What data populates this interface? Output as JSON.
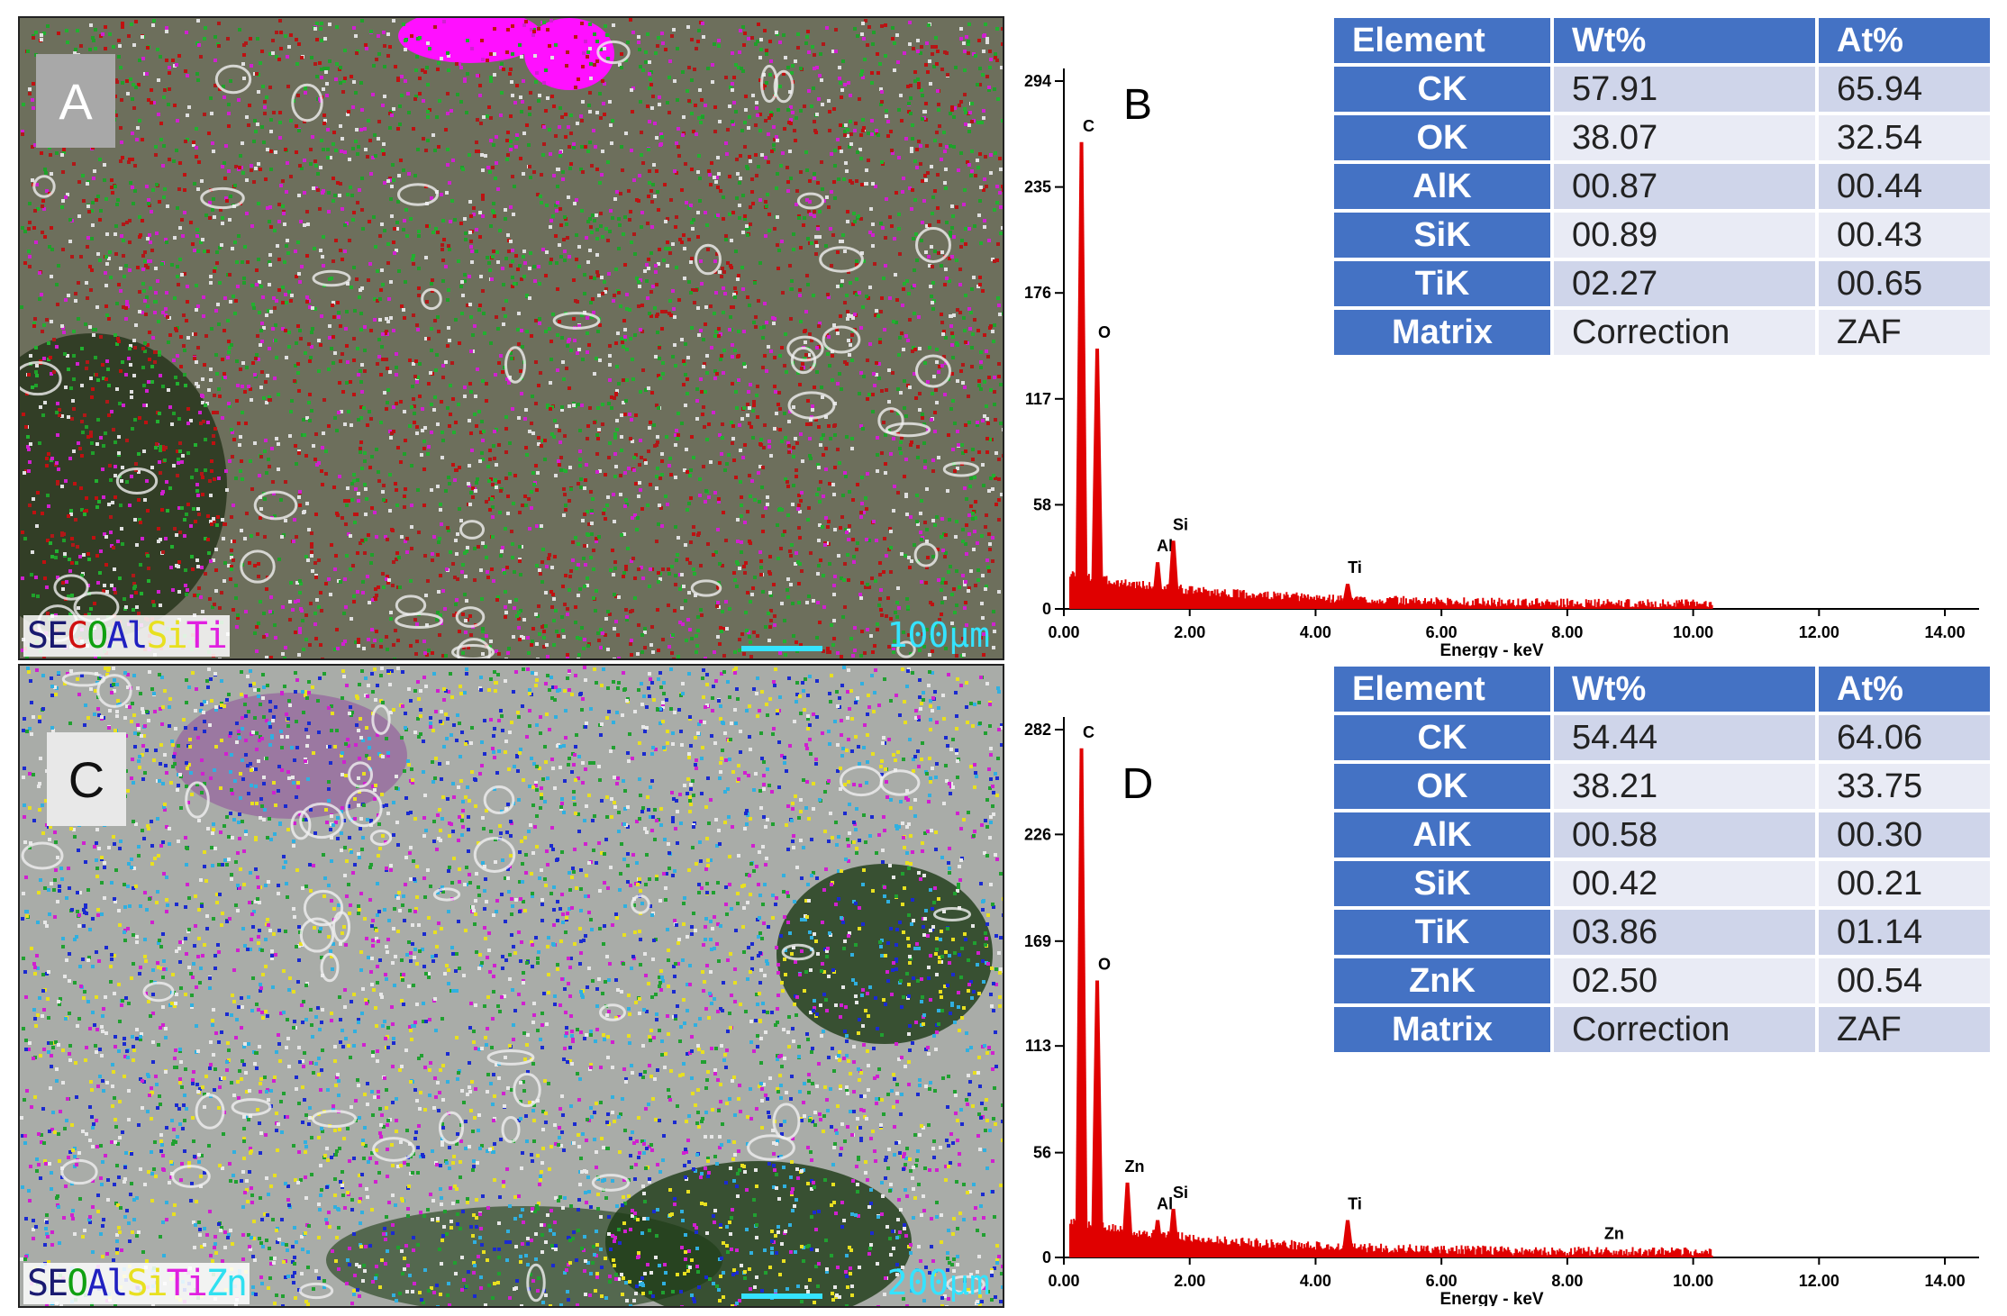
{
  "panels": {
    "top": {
      "map_letter": "A",
      "spectrum_letter": "B",
      "legend": [
        {
          "text": "SE",
          "color": "#1a1a70"
        },
        {
          "text": "C",
          "color": "#d01010"
        },
        {
          "text": "O",
          "color": "#10a010"
        },
        {
          "text": "Al",
          "color": "#2020c0"
        },
        {
          "text": "Si",
          "color": "#e8e020"
        },
        {
          "text": "Ti",
          "color": "#e020e0"
        }
      ],
      "scale_label": "100μm",
      "table": {
        "headers": [
          "Element",
          "Wt%",
          "At%"
        ],
        "rows": [
          [
            "CK",
            "57.91",
            "65.94"
          ],
          [
            "OK",
            "38.07",
            "32.54"
          ],
          [
            "AlK",
            "00.87",
            "00.44"
          ],
          [
            "SiK",
            "00.89",
            "00.43"
          ],
          [
            "TiK",
            "02.27",
            "00.65"
          ],
          [
            "Matrix",
            "Correction",
            "ZAF"
          ]
        ]
      }
    },
    "bottom": {
      "map_letter": "C",
      "spectrum_letter": "D",
      "legend": [
        {
          "text": "SE",
          "color": "#1a1a70"
        },
        {
          "text": "O",
          "color": "#10a010"
        },
        {
          "text": "Al",
          "color": "#2020c0"
        },
        {
          "text": "Si",
          "color": "#e8e020"
        },
        {
          "text": "Ti",
          "color": "#e020e0"
        },
        {
          "text": "Zn",
          "color": "#30e0f0"
        }
      ],
      "scale_label": "200μm",
      "table": {
        "headers": [
          "Element",
          "Wt%",
          "At%"
        ],
        "rows": [
          [
            "CK",
            "54.44",
            "64.06"
          ],
          [
            "OK",
            "38.21",
            "33.75"
          ],
          [
            "AlK",
            "00.58",
            "00.30"
          ],
          [
            "SiK",
            "00.42",
            "00.21"
          ],
          [
            "TiK",
            "03.86",
            "01.14"
          ],
          [
            "ZnK",
            "02.50",
            "00.54"
          ],
          [
            "Matrix",
            "Correction",
            "ZAF"
          ]
        ]
      }
    }
  },
  "chart_data": [
    {
      "type": "line",
      "xlabel": "Energy - keV",
      "xlim": [
        0,
        14.4
      ],
      "x_ticks": [
        "0.00",
        "2.00",
        "4.00",
        "6.00",
        "8.00",
        "10.00",
        "12.00",
        "14.00"
      ],
      "ylim": [
        0,
        294
      ],
      "y_ticks": [
        "0",
        "58",
        "117",
        "176",
        "235",
        "294"
      ],
      "peaks": [
        {
          "x": 0.28,
          "y": 260,
          "label": "C"
        },
        {
          "x": 0.53,
          "y": 145,
          "label": "O"
        },
        {
          "x": 1.49,
          "y": 26,
          "label": "Al"
        },
        {
          "x": 1.74,
          "y": 38,
          "label": "Si"
        },
        {
          "x": 4.51,
          "y": 14,
          "label": "Ti"
        }
      ]
    },
    {
      "type": "line",
      "xlabel": "Energy - keV",
      "xlim": [
        0,
        14.4
      ],
      "x_ticks": [
        "0.00",
        "2.00",
        "4.00",
        "6.00",
        "8.00",
        "10.00",
        "12.00",
        "14.00"
      ],
      "ylim": [
        0,
        282
      ],
      "y_ticks": [
        "0",
        "56",
        "113",
        "169",
        "226",
        "282"
      ],
      "peaks": [
        {
          "x": 0.28,
          "y": 272,
          "label": "C"
        },
        {
          "x": 0.53,
          "y": 148,
          "label": "O"
        },
        {
          "x": 1.01,
          "y": 40,
          "label": "Zn"
        },
        {
          "x": 1.49,
          "y": 20,
          "label": "Al"
        },
        {
          "x": 1.74,
          "y": 26,
          "label": "Si"
        },
        {
          "x": 4.51,
          "y": 20,
          "label": "Ti"
        },
        {
          "x": 8.63,
          "y": 4,
          "label": "Zn"
        }
      ]
    }
  ]
}
